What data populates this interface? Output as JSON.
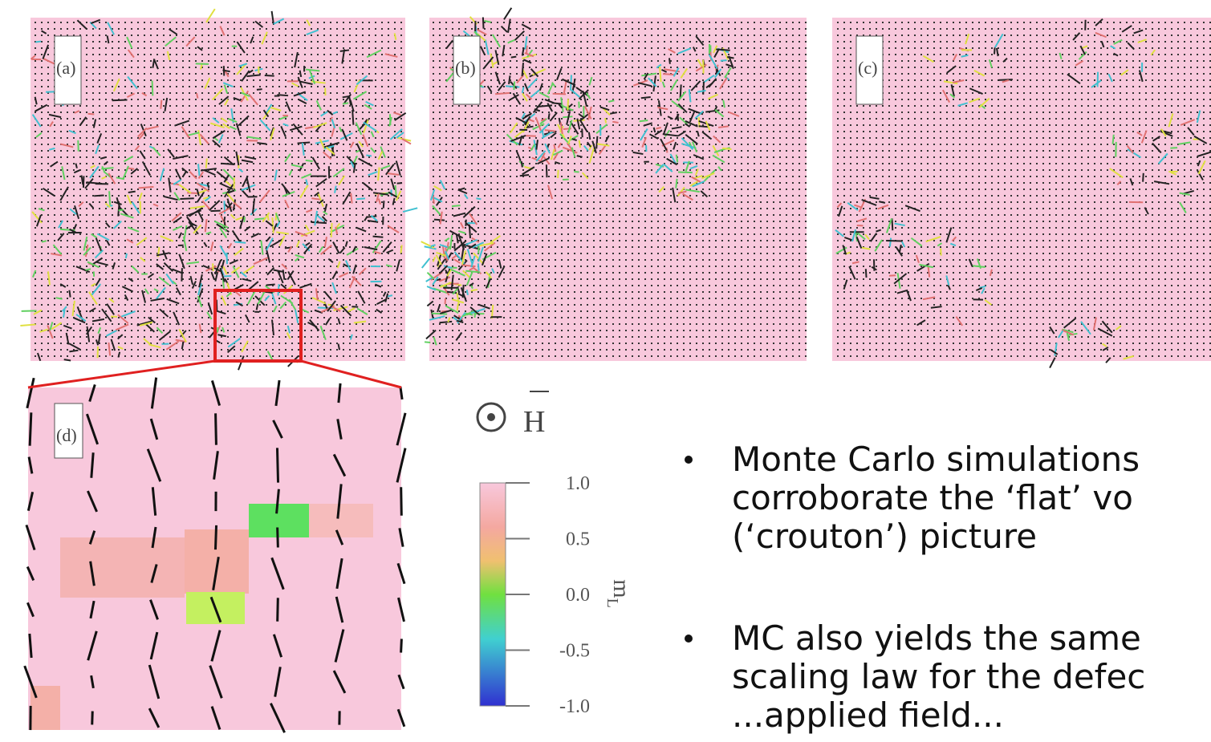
{
  "figure": {
    "panels": [
      "(a)",
      "(b)",
      "(c)",
      "(d)"
    ],
    "field_label": "H",
    "colorbar": {
      "ticks": [
        "1.0",
        "0.5",
        "0.0",
        "-0.5",
        "-1.0"
      ],
      "label": "m",
      "label_sub": "L"
    }
  },
  "bullets": [
    [
      "Monte Carlo simulations",
      "corroborate the ‘flat’ vo",
      "(‘crouton’) picture"
    ],
    [
      "MC also yields the same",
      "scaling law for the defec",
      "...applied field..."
    ]
  ]
}
